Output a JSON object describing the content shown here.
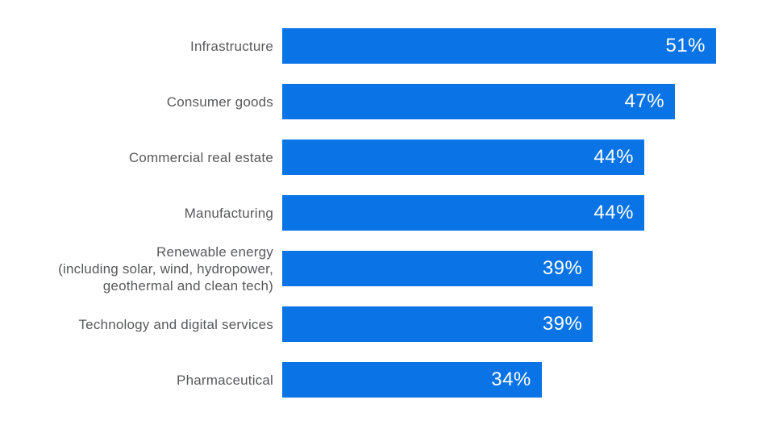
{
  "chart_data": {
    "type": "bar",
    "orientation": "horizontal",
    "title": "",
    "xlabel": "",
    "ylabel": "",
    "categories": [
      "Infrastructure",
      "Consumer goods",
      "Commercial real estate",
      "Manufacturing",
      "Renewable energy\n(including solar, wind, hydropower,\ngeothermal and clean tech)",
      "Technology and digital services",
      "Pharmaceutical"
    ],
    "values": [
      51,
      47,
      44,
      44,
      39,
      39,
      34
    ],
    "value_labels": [
      "51%",
      "47%",
      "44%",
      "44%",
      "39%",
      "39%",
      "34%"
    ],
    "xlim": [
      8.7,
      51
    ],
    "grid": false,
    "legend": false,
    "data_label_position": "inside-end",
    "bar_color": "#0A74E6",
    "label_color": "#58595B",
    "value_text_color": "#FFFFFF",
    "background_color": "#FFFFFF"
  }
}
